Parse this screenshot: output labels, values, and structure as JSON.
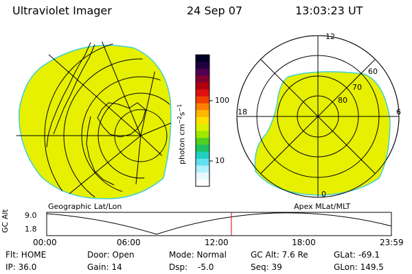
{
  "header": {
    "instrument": "Ultraviolet Imager",
    "date": "24 Sep 07",
    "time": "13:03:23 UT"
  },
  "left_panel": {
    "label": "Geographic Lat/Lon"
  },
  "right_panel": {
    "label": "Apex MLat/MLT",
    "mlt_labels": [
      "12",
      "18",
      "6",
      "0"
    ],
    "lat_labels": [
      "60",
      "70",
      "80"
    ]
  },
  "colorbar": {
    "unit_text": "photon cm",
    "unit_exp1": "−2",
    "unit_mid": "s",
    "unit_exp2": "−1",
    "tick_100": "100",
    "tick_10": "10",
    "colors": [
      "#000022",
      "#200040",
      "#500050",
      "#800030",
      "#b00010",
      "#e01010",
      "#f04000",
      "#ff8000",
      "#ffb800",
      "#ffe000",
      "#d8f000",
      "#a0e800",
      "#50d020",
      "#20c060",
      "#20d0c0",
      "#60e0f0",
      "#b0f0ff",
      "#e8f8ff",
      "#ffffff"
    ]
  },
  "altitude_plot": {
    "ylabel": "GC Alt",
    "y_ticks": [
      "9.0",
      "1.8"
    ],
    "x_ticks": [
      "00:00",
      "06:00",
      "12:00",
      "18:00",
      "23:59"
    ],
    "current_time_hours": 13.06
  },
  "info": {
    "flt": "Flt: HOME",
    "ip": "IP: 36.0",
    "door": "Door: Open",
    "gain": "Gain: 14",
    "mode": "Mode: Normal",
    "dsp_label": "Dsp:",
    "dsp_value": "-5.0",
    "gc_alt": "GC Alt: 7.6 Re",
    "seq": "Seq: 39",
    "glat": "GLat: -69.1",
    "glon": "GLon: 149.5"
  },
  "colors": {
    "image_fill": "#e6f000",
    "image_edge": "#40d0d0",
    "marker_line": "#e00000"
  }
}
